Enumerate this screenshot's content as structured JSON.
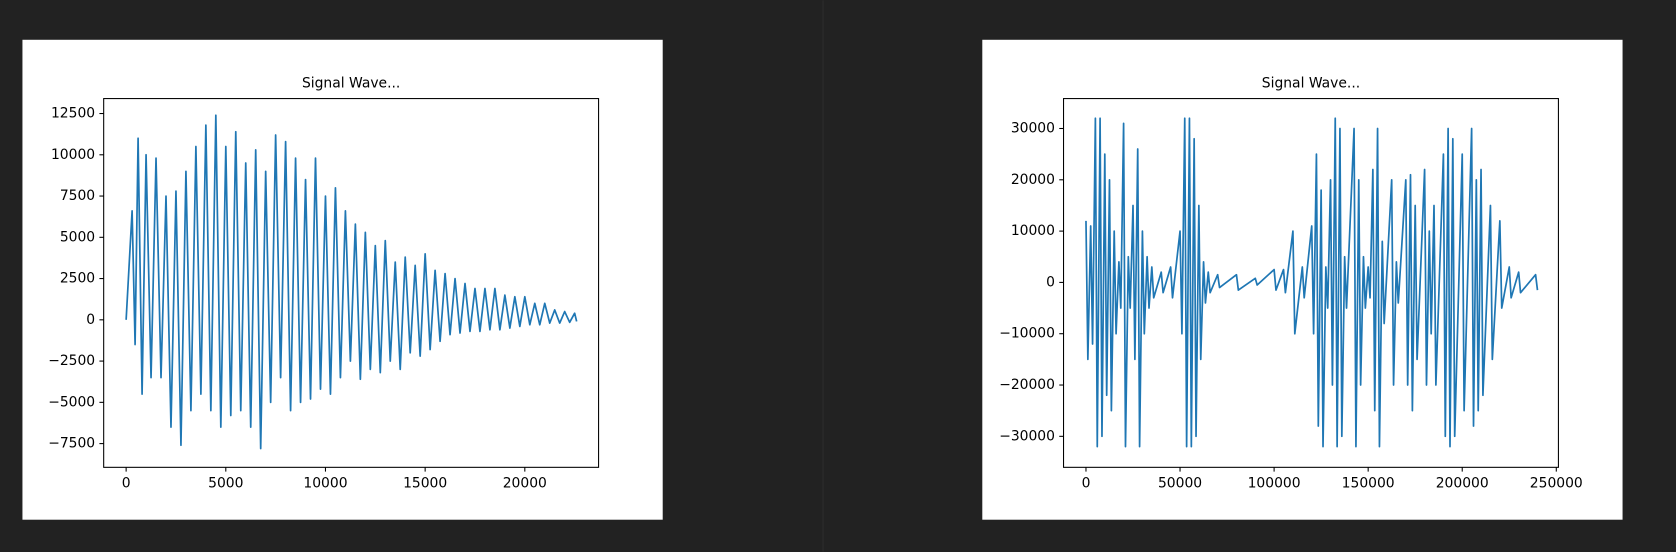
{
  "chart_data": [
    {
      "type": "line",
      "title": "Signal Wave...",
      "color": "#1f77b4",
      "xlim": [
        -1126,
        23700
      ],
      "ylim": [
        -8938,
        13407
      ],
      "xticks": [
        0,
        5000,
        10000,
        15000,
        20000
      ],
      "yticks": [
        {
          "value": -7500,
          "label": "−7500"
        },
        {
          "value": -5000,
          "label": "−5000"
        },
        {
          "value": -2500,
          "label": "−2500"
        },
        0,
        2500,
        5000,
        7500,
        10000,
        12500
      ],
      "x": [
        0,
        300,
        450,
        600,
        800,
        1000,
        1250,
        1500,
        1750,
        2000,
        2250,
        2500,
        2750,
        3000,
        3250,
        3500,
        3750,
        4000,
        4250,
        4500,
        4750,
        5000,
        5250,
        5500,
        5750,
        6000,
        6250,
        6500,
        6750,
        7000,
        7250,
        7500,
        7750,
        8000,
        8250,
        8500,
        8750,
        9000,
        9250,
        9500,
        9750,
        10000,
        10250,
        10500,
        10750,
        11000,
        11250,
        11500,
        11750,
        12000,
        12250,
        12500,
        12750,
        13000,
        13250,
        13500,
        13750,
        14000,
        14250,
        14500,
        14750,
        15000,
        15250,
        15500,
        15750,
        16000,
        16250,
        16500,
        16750,
        17000,
        17250,
        17500,
        17750,
        18000,
        18250,
        18500,
        18750,
        19000,
        19250,
        19500,
        19750,
        20000,
        20250,
        20500,
        20750,
        21000,
        21250,
        21500,
        21750,
        22000,
        22250,
        22500,
        22600
      ],
      "values": [
        0,
        6600,
        -1500,
        11000,
        -4500,
        10000,
        -3500,
        9800,
        -3500,
        7500,
        -6500,
        7800,
        -7600,
        9000,
        -5500,
        10500,
        -4500,
        11800,
        -5500,
        12400,
        -6500,
        10500,
        -5800,
        11400,
        -5500,
        9500,
        -6500,
        10300,
        -7800,
        9000,
        -5000,
        11200,
        -3500,
        10800,
        -5500,
        9800,
        -5000,
        8500,
        -4800,
        9800,
        -4200,
        7500,
        -4500,
        8000,
        -3500,
        6600,
        -2500,
        5800,
        -3600,
        5300,
        -3000,
        4500,
        -3200,
        4800,
        -2500,
        3500,
        -3000,
        3800,
        -2000,
        3300,
        -2200,
        4000,
        -1800,
        3000,
        -1300,
        2800,
        -900,
        2500,
        -800,
        2200,
        -700,
        1900,
        -700,
        1900,
        -600,
        1900,
        -600,
        1500,
        -500,
        1400,
        -400,
        1400,
        -300,
        1000,
        -300,
        1000,
        -200,
        600,
        -200,
        500,
        -150,
        400,
        -100
      ]
    },
    {
      "type": "line",
      "title": "Signal Wave...",
      "color": "#1f77b4",
      "xlim": [
        -11932,
        251136
      ],
      "ylim": [
        -36042,
        35833
      ],
      "xticks": [
        0,
        50000,
        100000,
        150000,
        200000,
        250000
      ],
      "yticks": [
        {
          "value": -30000,
          "label": "−30000"
        },
        {
          "value": -20000,
          "label": "−20000"
        },
        {
          "value": -10000,
          "label": "−10000"
        },
        0,
        10000,
        20000,
        30000
      ],
      "x": [
        0,
        1000,
        2500,
        3500,
        5000,
        6000,
        7500,
        8500,
        10000,
        11000,
        12500,
        13500,
        15000,
        16000,
        17500,
        18500,
        20000,
        21000,
        22500,
        23500,
        25000,
        26000,
        27500,
        28500,
        30000,
        31000,
        32500,
        33500,
        35000,
        36000,
        40000,
        41000,
        45000,
        46000,
        50000,
        51000,
        52500,
        53500,
        55000,
        56000,
        57500,
        58500,
        60000,
        61000,
        62500,
        63500,
        65000,
        66000,
        70000,
        71000,
        80000,
        81000,
        90000,
        91000,
        100000,
        101000,
        105000,
        106000,
        110000,
        111000,
        115000,
        116000,
        120000,
        121000,
        122500,
        123500,
        125000,
        126000,
        127500,
        128500,
        130000,
        131000,
        132500,
        133500,
        135000,
        136000,
        137500,
        138500,
        142500,
        143500,
        145000,
        146000,
        147500,
        148500,
        150000,
        151000,
        152500,
        153500,
        155000,
        156000,
        157500,
        158500,
        162500,
        163500,
        165000,
        166000,
        170000,
        171000,
        172500,
        173500,
        175000,
        176000,
        180000,
        181000,
        182500,
        183500,
        185000,
        186000,
        190000,
        191000,
        192500,
        193500,
        195000,
        196000,
        200000,
        201000,
        205000,
        206000,
        207500,
        208500,
        210000,
        211000,
        215000,
        216000,
        220000,
        221000,
        225000,
        226000,
        230000,
        231000,
        239000,
        240000
      ],
      "values": [
        12000,
        -15000,
        11000,
        -12000,
        32000,
        -32000,
        32000,
        -30000,
        25000,
        -22000,
        20000,
        -25000,
        10000,
        -10000,
        4000,
        -5000,
        31000,
        -32000,
        5000,
        -5000,
        15000,
        -15000,
        26000,
        -32000,
        10000,
        -10000,
        5000,
        -5000,
        3000,
        -3000,
        2000,
        -2000,
        3000,
        -3000,
        10000,
        -10000,
        32000,
        -32000,
        32000,
        -32000,
        28000,
        -30000,
        15000,
        -15000,
        4000,
        -4000,
        2000,
        -2000,
        1500,
        -1000,
        1500,
        -1500,
        800,
        -500,
        2500,
        -1500,
        2500,
        -2000,
        10000,
        -10000,
        3000,
        -3000,
        11000,
        -10000,
        25000,
        -28000,
        18000,
        -32000,
        3000,
        -5000,
        20000,
        -20000,
        32000,
        -32000,
        30000,
        -30000,
        5000,
        -5000,
        30000,
        -32000,
        20000,
        -20000,
        5000,
        -5000,
        3000,
        -3000,
        22000,
        -25000,
        30000,
        -32000,
        8000,
        -8000,
        20000,
        -20000,
        4000,
        -4000,
        20000,
        -20000,
        21000,
        -25000,
        15000,
        -15000,
        22000,
        -20000,
        10000,
        -10000,
        15000,
        -20000,
        25000,
        -30000,
        30000,
        -32000,
        28000,
        -30000,
        25000,
        -25000,
        30000,
        -28000,
        20000,
        -25000,
        22000,
        -22000,
        15000,
        -15000,
        12000,
        -5000,
        3000,
        -3000,
        2000,
        -2000,
        1500,
        -1500
      ]
    }
  ]
}
